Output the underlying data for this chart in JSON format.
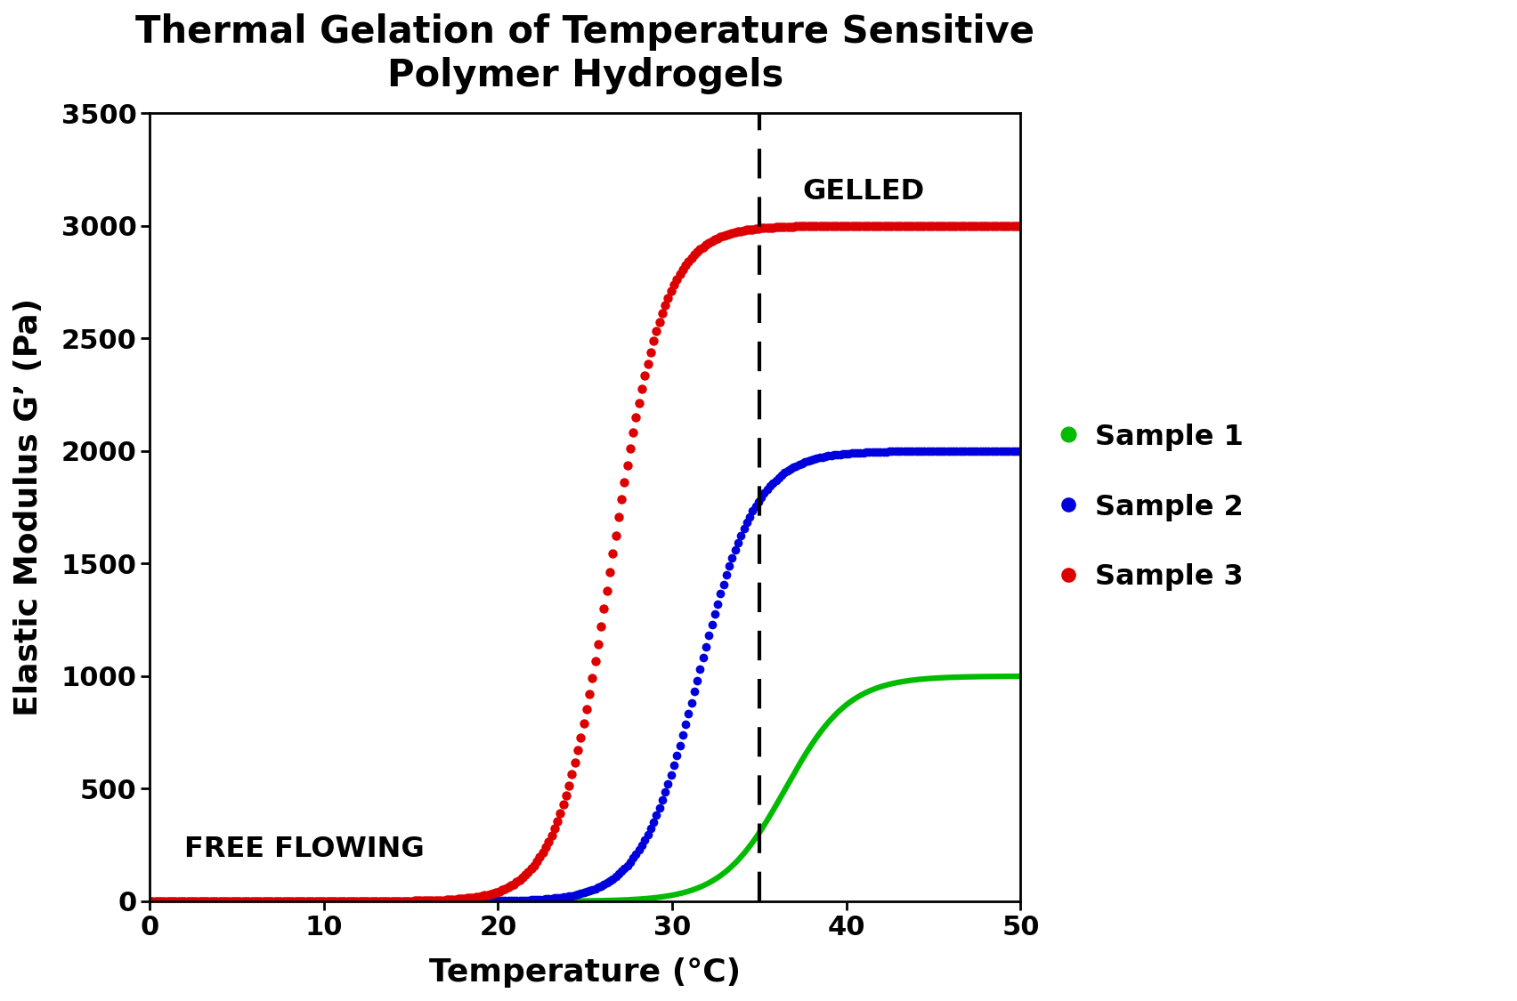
{
  "title": "Thermal Gelation of Temperature Sensitive\nPolymer Hydrogels",
  "xlabel": "Temperature (°C)",
  "ylabel": "Elastic Modulus G’ (Pa)",
  "xlim": [
    0,
    50
  ],
  "ylim": [
    0,
    3500
  ],
  "xticks": [
    0,
    10,
    20,
    30,
    40,
    50
  ],
  "yticks": [
    0,
    500,
    1000,
    1500,
    2000,
    2500,
    3000,
    3500
  ],
  "vline_x": 35,
  "vline_color": "#000000",
  "background_color": "#ffffff",
  "plot_bg_color": "#ffffff",
  "title_fontsize": 30,
  "label_fontsize": 26,
  "tick_fontsize": 22,
  "legend_fontsize": 23,
  "annotation_fontsize": 23,
  "samples": [
    {
      "label": "Sample 1",
      "color": "#00bb00",
      "midpoint": 36.5,
      "steepness": 0.55,
      "max_val": 1000,
      "style": "solid",
      "linewidth": 4.5,
      "markersize": 0
    },
    {
      "label": "Sample 2",
      "color": "#0000dd",
      "midpoint": 31.5,
      "steepness": 0.6,
      "max_val": 2000,
      "style": "dotted",
      "linewidth": 0,
      "markersize": 7
    },
    {
      "label": "Sample 3",
      "color": "#dd0000",
      "midpoint": 26.5,
      "steepness": 0.65,
      "max_val": 3000,
      "style": "dotted",
      "linewidth": 0,
      "markersize": 7.5
    }
  ],
  "free_flowing_text": "FREE FLOWING",
  "free_flowing_x": 2.0,
  "free_flowing_y": 230,
  "gelled_text": "GELLED",
  "gelled_x": 37.5,
  "gelled_y": 3150
}
